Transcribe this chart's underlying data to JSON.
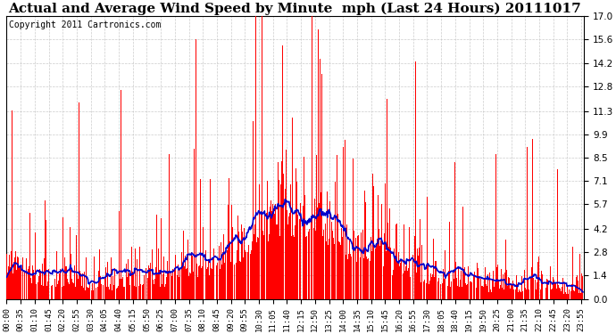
{
  "title": "Actual and Average Wind Speed by Minute  mph (Last 24 Hours) 20111017",
  "copyright": "Copyright 2011 Cartronics.com",
  "yticks": [
    0.0,
    1.4,
    2.8,
    4.2,
    5.7,
    7.1,
    8.5,
    9.9,
    11.3,
    12.8,
    14.2,
    15.6,
    17.0
  ],
  "ymax": 17.0,
  "ymin": 0.0,
  "bar_color": "#ff0000",
  "line_color": "#0000cc",
  "background_color": "#ffffff",
  "grid_color": "#c0c0c0",
  "title_fontsize": 11,
  "copyright_fontsize": 7
}
